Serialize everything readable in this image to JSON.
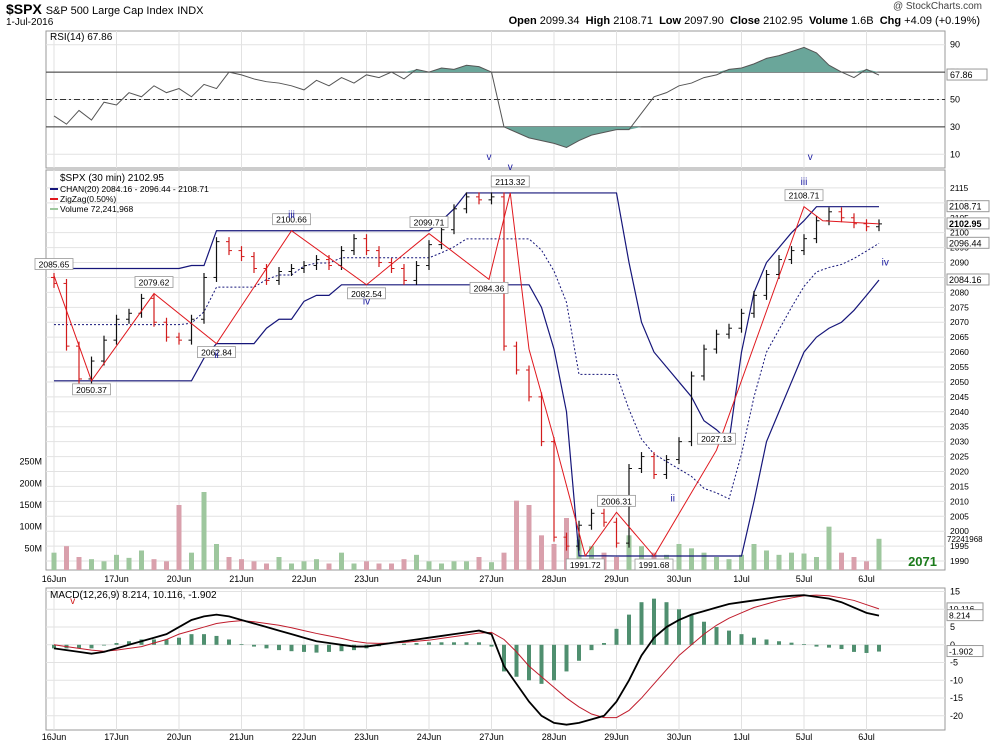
{
  "header": {
    "symbol": "$SPX",
    "name": "S&P 500 Large Cap Index",
    "exchange": "INDX",
    "date": "1-Jul-2016",
    "credit": "@ StockCharts.com",
    "open_label": "Open",
    "open": "2099.34",
    "high_label": "High",
    "high": "2108.71",
    "low_label": "Low",
    "low": "2097.90",
    "close_label": "Close",
    "close": "2102.95",
    "volume_label": "Volume",
    "volume": "1.6B",
    "chg_label": "Chg",
    "chg": "+4.09 (+0.19%)"
  },
  "colors": {
    "price_bar_down": "#d21c1c",
    "price_bar_up": "#111111",
    "channel": "#16167a",
    "zigzag": "#e0181e",
    "volume_up": "#9ec79e",
    "volume_down": "#d9a0ac",
    "rsi_line": "#555555",
    "rsi_fill": "#6aa69a",
    "macd_line": "#000000",
    "signal_line": "#c01c2c",
    "histogram": "#4f8f6f",
    "gridline": "#e2e2e2"
  },
  "chart_data": [
    {
      "type": "line",
      "panel": "rsi",
      "title": "RSI(14) 67.86",
      "ylim": [
        0,
        100
      ],
      "ticks": [
        10,
        30,
        50,
        70,
        90
      ],
      "reference_lines": [
        30,
        50,
        70
      ],
      "last_value_label": "67.86",
      "marks": [
        {
          "label": "v",
          "x": 6.96
        },
        {
          "label": "v",
          "x": 12.1
        }
      ],
      "x": [
        0,
        0.2,
        0.4,
        0.6,
        0.8,
        1,
        1.2,
        1.4,
        1.6,
        1.8,
        2,
        2.2,
        2.4,
        2.6,
        2.8,
        3,
        3.2,
        3.4,
        3.6,
        3.8,
        4,
        4.2,
        4.4,
        4.6,
        4.8,
        5,
        5.2,
        5.4,
        5.6,
        5.8,
        6,
        6.2,
        6.4,
        6.6,
        6.8,
        7,
        7.2,
        7.4,
        7.6,
        7.8,
        8,
        8.2,
        8.4,
        8.6,
        8.8,
        9,
        9.2,
        9.4,
        9.6,
        9.8,
        10,
        10.2,
        10.4,
        10.6,
        10.8,
        11,
        11.2,
        11.4,
        11.6,
        11.8,
        12,
        12.2,
        12.4,
        12.6,
        12.8,
        13,
        13.2
      ],
      "values": [
        38,
        32,
        42,
        35,
        48,
        46,
        55,
        52,
        60,
        55,
        58,
        52,
        61,
        58,
        70,
        68,
        65,
        63,
        62,
        60,
        57,
        64,
        60,
        66,
        62,
        68,
        66,
        70,
        65,
        72,
        70,
        73,
        72,
        75,
        74,
        70,
        30,
        26,
        22,
        20,
        18,
        15,
        20,
        24,
        26,
        28,
        28,
        40,
        52,
        55,
        60,
        62,
        66,
        68,
        72,
        73,
        76,
        80,
        82,
        85,
        88,
        84,
        75,
        70,
        66,
        72,
        67.86
      ]
    },
    {
      "type": "bar",
      "panel": "price",
      "title": "$SPX (30 min) 2102.95",
      "legend": [
        "CHAN(20) 2084.16 - 2096.44 - 2108.71",
        "ZigZag(0.50%)",
        "Volume 72,241,968"
      ],
      "x_tick_labels": [
        "16Jun",
        "17Jun",
        "20Jun",
        "21Jun",
        "22Jun",
        "23Jun",
        "24Jun",
        "27Jun",
        "28Jun",
        "29Jun",
        "30Jun",
        "1Jul",
        "5Jul",
        "6Jul"
      ],
      "ylim": [
        1987,
        2121
      ],
      "y_ticks": [
        1990,
        1995,
        2000,
        2005,
        2010,
        2015,
        2020,
        2025,
        2030,
        2035,
        2040,
        2045,
        2050,
        2055,
        2060,
        2065,
        2070,
        2075,
        2080,
        2085,
        2090,
        2095,
        2100,
        2105,
        2110,
        2115
      ],
      "last_values": {
        "close": "2102.95",
        "chan_high": "2108.71",
        "chan_mid": "2096.44",
        "chan_low": "2084.16",
        "volume": "72241968"
      },
      "annotation": "2071",
      "x": [
        0,
        0.2,
        0.4,
        0.6,
        0.8,
        1,
        1.2,
        1.4,
        1.6,
        1.8,
        2,
        2.2,
        2.4,
        2.6,
        2.8,
        3,
        3.2,
        3.4,
        3.6,
        3.8,
        4,
        4.2,
        4.4,
        4.6,
        4.8,
        5,
        5.2,
        5.4,
        5.6,
        5.8,
        6,
        6.2,
        6.4,
        6.6,
        6.8,
        7,
        7.2,
        7.4,
        7.6,
        7.8,
        8,
        8.2,
        8.4,
        8.6,
        8.8,
        9,
        9.2,
        9.4,
        9.6,
        9.8,
        10,
        10.2,
        10.4,
        10.6,
        10.8,
        11,
        11.2,
        11.4,
        11.6,
        11.8,
        12,
        12.2,
        12.4,
        12.6,
        12.8,
        13,
        13.2
      ],
      "close": [
        2083,
        2062,
        2051,
        2057,
        2064,
        2071,
        2073,
        2078,
        2070,
        2065,
        2064,
        2071,
        2085,
        2097,
        2094,
        2092,
        2088,
        2084,
        2087,
        2088,
        2089,
        2091,
        2089,
        2094,
        2098,
        2094,
        2090,
        2088,
        2084,
        2089,
        2096,
        2101,
        2108,
        2112,
        2111,
        2112,
        2062,
        2054,
        2045,
        2030,
        1998,
        1995,
        2002,
        2006,
        2003,
        1996,
        2021,
        2025,
        2019,
        2024,
        2030,
        2052,
        2061,
        2066,
        2068,
        2073,
        2079,
        2086,
        2091,
        2094,
        2098,
        2104,
        2107,
        2105,
        2103,
        2102,
        2102.95
      ],
      "volume": [
        40,
        55,
        30,
        25,
        20,
        35,
        28,
        45,
        25,
        20,
        150,
        40,
        180,
        60,
        30,
        25,
        20,
        15,
        30,
        15,
        20,
        25,
        15,
        40,
        15,
        20,
        15,
        15,
        25,
        35,
        20,
        15,
        20,
        20,
        30,
        18,
        40,
        160,
        150,
        80,
        60,
        120,
        70,
        55,
        40,
        30,
        80,
        55,
        40,
        35,
        60,
        50,
        40,
        30,
        25,
        35,
        60,
        45,
        35,
        40,
        38,
        30,
        100,
        40,
        30,
        20,
        72
      ],
      "zigzag": {
        "x": [
          0,
          0.6,
          1.6,
          2.6,
          3.8,
          5.0,
          6.0,
          6.96,
          7.3,
          7.6,
          8.0,
          8.5,
          9.0,
          9.6,
          10.6,
          12.0,
          12.3,
          13.2
        ],
        "values": [
          2085.65,
          2050.37,
          2079.62,
          2062.84,
          2100.66,
          2082.54,
          2099.71,
          2084.36,
          2113.32,
          2061,
          2031,
          1991.72,
          2006.31,
          1991.68,
          2027.13,
          2108.71,
          2104,
          2102.95
        ]
      },
      "channel_high": [
        2088,
        2088,
        2088,
        2088,
        2088,
        2088,
        2088,
        2088,
        2088,
        2088,
        2088,
        2089,
        2089,
        2100.66,
        2100.66,
        2100.66,
        2100.66,
        2100.66,
        2100.66,
        2100.66,
        2100.66,
        2100.66,
        2100.66,
        2100.66,
        2100.66,
        2100.66,
        2100.66,
        2100.66,
        2100.66,
        2100.66,
        2100.66,
        2104,
        2108,
        2113.32,
        2113.32,
        2113.32,
        2113.32,
        2113.32,
        2113.32,
        2113.32,
        2113.32,
        2113.32,
        2113.32,
        2113.32,
        2113.32,
        2113.32,
        2090,
        2070,
        2060,
        2055,
        2050,
        2045,
        2037,
        2034,
        2030,
        2060,
        2080,
        2090,
        2095,
        2100,
        2104,
        2108.71,
        2108.71,
        2108.71,
        2108.71,
        2108.71,
        2108.71
      ],
      "channel_low": [
        2050.37,
        2050.37,
        2050.37,
        2050.37,
        2050.37,
        2050.37,
        2050.37,
        2050.37,
        2050.37,
        2050.37,
        2050.37,
        2050.37,
        2058,
        2062.84,
        2062.84,
        2062.84,
        2062.84,
        2068,
        2071,
        2071,
        2077,
        2079,
        2079,
        2082.54,
        2082.54,
        2082.54,
        2082.54,
        2082.54,
        2082.54,
        2082.54,
        2082.54,
        2082.54,
        2082.54,
        2082.54,
        2082.54,
        2082.54,
        2082.54,
        2082.54,
        2082.54,
        2075,
        2061,
        2040,
        1991.72,
        1991.72,
        1991.72,
        1991.68,
        1991.68,
        1991.68,
        1991.68,
        1991.68,
        1991.68,
        1991.68,
        1991.68,
        1991.68,
        1991.68,
        1991.68,
        2010,
        2030,
        2040,
        2050,
        2060,
        2065,
        2068,
        2070,
        2074,
        2079,
        2084.16
      ]
    },
    {
      "type": "line",
      "panel": "macd",
      "title": "MACD(12,26,9) 8.214, 10.116, -1.902",
      "ylim": [
        -24,
        16
      ],
      "ticks": [
        -20,
        -15,
        -10,
        -5,
        0,
        5,
        10,
        15
      ],
      "last_values": {
        "macd": "8.214",
        "signal": "10.116",
        "histogram": "-1.902"
      },
      "marks": [
        {
          "label": "v",
          "x": 0.3
        }
      ],
      "x": [
        0,
        0.2,
        0.4,
        0.6,
        0.8,
        1,
        1.2,
        1.4,
        1.6,
        1.8,
        2,
        2.2,
        2.4,
        2.6,
        2.8,
        3,
        3.2,
        3.4,
        3.6,
        3.8,
        4,
        4.2,
        4.4,
        4.6,
        4.8,
        5,
        5.2,
        5.4,
        5.6,
        5.8,
        6,
        6.2,
        6.4,
        6.6,
        6.8,
        7,
        7.2,
        7.4,
        7.6,
        7.8,
        8,
        8.2,
        8.4,
        8.6,
        8.8,
        9,
        9.2,
        9.4,
        9.6,
        9.8,
        10,
        10.2,
        10.4,
        10.6,
        10.8,
        11,
        11.2,
        11.4,
        11.6,
        11.8,
        12,
        12.2,
        12.4,
        12.6,
        12.8,
        13,
        13.2
      ],
      "macd": [
        -1,
        -1.5,
        -2,
        -2.5,
        -2,
        -1,
        0,
        1,
        2,
        3,
        5,
        7,
        8,
        8.5,
        8,
        7,
        6,
        5,
        4,
        3,
        2,
        1,
        0.5,
        0,
        -0.5,
        -0.5,
        0,
        0.5,
        1,
        1.5,
        2,
        2.5,
        3,
        3.5,
        4,
        3,
        -6,
        -11,
        -16,
        -20,
        -22,
        -22.5,
        -22,
        -21,
        -20,
        -16,
        -10,
        -3,
        2,
        5,
        7,
        8.5,
        9.5,
        10.5,
        11.5,
        12,
        12.5,
        13,
        13.5,
        13.8,
        14,
        13.5,
        13,
        12,
        10.5,
        9,
        8.214
      ],
      "signal": [
        0,
        -0.5,
        -1,
        -1.5,
        -1.8,
        -1.5,
        -1,
        -0.5,
        0.5,
        1.5,
        3,
        4,
        5,
        6,
        6.5,
        6.8,
        6.5,
        6,
        5.5,
        4.8,
        4,
        3.2,
        2.5,
        1.8,
        1,
        0.5,
        0.4,
        0.5,
        0.7,
        1,
        1.3,
        1.8,
        2.3,
        2.8,
        3.3,
        3.5,
        1.5,
        -2,
        -6,
        -9,
        -12,
        -15,
        -17.5,
        -19.5,
        -20.5,
        -20.5,
        -18.5,
        -15,
        -11,
        -7,
        -3,
        0,
        3,
        5.5,
        7.5,
        9,
        10.5,
        11.5,
        12.5,
        13.2,
        13.8,
        14,
        13.8,
        13.2,
        12.5,
        11.3,
        10.116
      ]
    }
  ]
}
